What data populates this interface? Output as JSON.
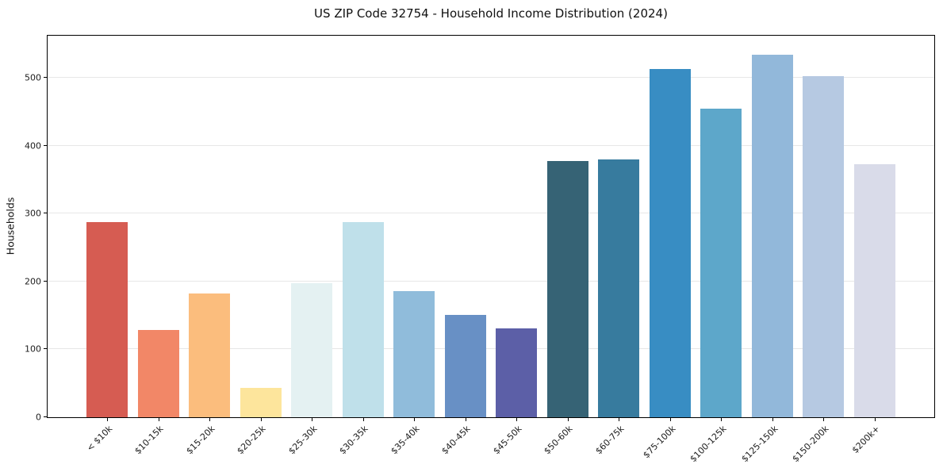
{
  "chart_data": {
    "type": "bar",
    "title": "US ZIP Code 32754 - Household Income Distribution (2024)",
    "xlabel": "",
    "ylabel": "Households",
    "categories": [
      "< $10k",
      "$10-15k",
      "$15-20k",
      "$20-25k",
      "$25-30k",
      "$30-35k",
      "$35-40k",
      "$40-45k",
      "$45-50k",
      "$50-60k",
      "$60-75k",
      "$75-100k",
      "$100-125k",
      "$125-150k",
      "$150-200k",
      "$200k+"
    ],
    "values": [
      288,
      129,
      182,
      43,
      198,
      288,
      186,
      151,
      131,
      377,
      380,
      513,
      455,
      534,
      502,
      373
    ],
    "bar_colors": [
      "#d65c52",
      "#f28767",
      "#fbbd7d",
      "#fde59c",
      "#e4f1f2",
      "#bfe0ea",
      "#90bcdb",
      "#6890c5",
      "#5c5fa7",
      "#366375",
      "#377b9e",
      "#388dc3",
      "#5da7ca",
      "#92b8da",
      "#b6c9e2",
      "#d9dbe9"
    ],
    "yticks": [
      0,
      100,
      200,
      300,
      400,
      500
    ],
    "ylim": [
      0,
      562
    ],
    "grid": "horizontal",
    "legend": "none",
    "colors": {
      "background": "#ffffff",
      "gridline": "#e7e7e7",
      "spine": "#000000",
      "text": "#1c1c1c"
    }
  }
}
